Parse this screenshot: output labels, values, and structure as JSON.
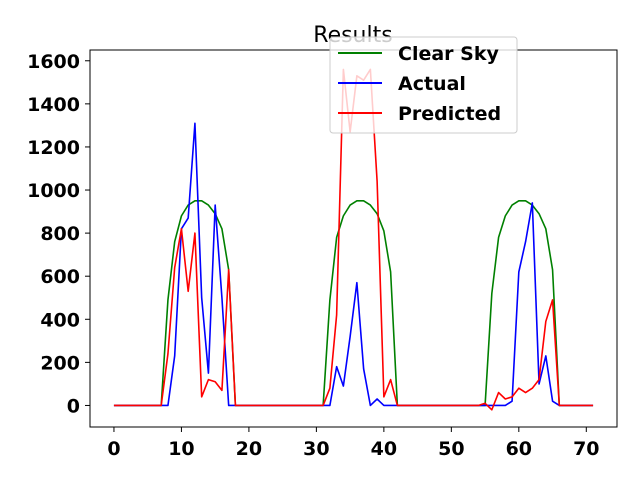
{
  "chart_data": {
    "type": "line",
    "title": "Results",
    "xlabel": "",
    "ylabel": "",
    "xlim": [
      -3.55,
      74.55
    ],
    "ylim": [
      -100,
      1650
    ],
    "xticks": [
      0,
      10,
      20,
      30,
      40,
      50,
      60,
      70
    ],
    "yticks": [
      0,
      200,
      400,
      600,
      800,
      1000,
      1200,
      1400,
      1600
    ],
    "grid": false,
    "legend_position": "top-right",
    "x": [
      0,
      1,
      2,
      3,
      4,
      5,
      6,
      7,
      8,
      9,
      10,
      11,
      12,
      13,
      14,
      15,
      16,
      17,
      18,
      19,
      20,
      21,
      22,
      23,
      24,
      25,
      26,
      27,
      28,
      29,
      30,
      31,
      32,
      33,
      34,
      35,
      36,
      37,
      38,
      39,
      40,
      41,
      42,
      43,
      44,
      45,
      46,
      47,
      48,
      49,
      50,
      51,
      52,
      53,
      54,
      55,
      56,
      57,
      58,
      59,
      60,
      61,
      62,
      63,
      64,
      65,
      66,
      67,
      68,
      69,
      70,
      71
    ],
    "series": [
      {
        "name": "Clear Sky",
        "color": "#008000",
        "values": [
          0,
          0,
          0,
          0,
          0,
          0,
          0,
          0,
          490,
          760,
          880,
          930,
          950,
          950,
          930,
          890,
          820,
          630,
          0,
          0,
          0,
          0,
          0,
          0,
          0,
          0,
          0,
          0,
          0,
          0,
          0,
          0,
          490,
          780,
          880,
          930,
          950,
          950,
          930,
          890,
          810,
          620,
          0,
          0,
          0,
          0,
          0,
          0,
          0,
          0,
          0,
          0,
          0,
          0,
          0,
          0,
          520,
          780,
          880,
          930,
          950,
          950,
          930,
          890,
          820,
          630,
          0,
          0,
          0,
          0,
          0,
          0
        ]
      },
      {
        "name": "Actual",
        "color": "#0000ff",
        "values": [
          0,
          0,
          0,
          0,
          0,
          0,
          0,
          0,
          0,
          230,
          820,
          870,
          1310,
          500,
          150,
          930,
          500,
          0,
          0,
          0,
          0,
          0,
          0,
          0,
          0,
          0,
          0,
          0,
          0,
          0,
          0,
          0,
          0,
          180,
          90,
          320,
          570,
          170,
          0,
          30,
          0,
          0,
          0,
          0,
          0,
          0,
          0,
          0,
          0,
          0,
          0,
          0,
          0,
          0,
          0,
          0,
          0,
          0,
          0,
          20,
          620,
          760,
          940,
          100,
          230,
          20,
          0,
          0,
          0,
          0,
          0,
          0
        ]
      },
      {
        "name": "Predicted",
        "color": "#ff0000",
        "values": [
          0,
          0,
          0,
          0,
          0,
          0,
          0,
          0,
          240,
          640,
          820,
          530,
          800,
          40,
          120,
          110,
          70,
          630,
          0,
          0,
          0,
          0,
          0,
          0,
          0,
          0,
          0,
          0,
          0,
          0,
          0,
          0,
          80,
          420,
          1560,
          1270,
          1530,
          1510,
          1560,
          1040,
          40,
          120,
          0,
          0,
          0,
          0,
          0,
          0,
          0,
          0,
          0,
          0,
          0,
          0,
          0,
          10,
          -20,
          60,
          30,
          40,
          80,
          60,
          80,
          120,
          390,
          490,
          0,
          0,
          0,
          0,
          0,
          0
        ]
      }
    ]
  }
}
